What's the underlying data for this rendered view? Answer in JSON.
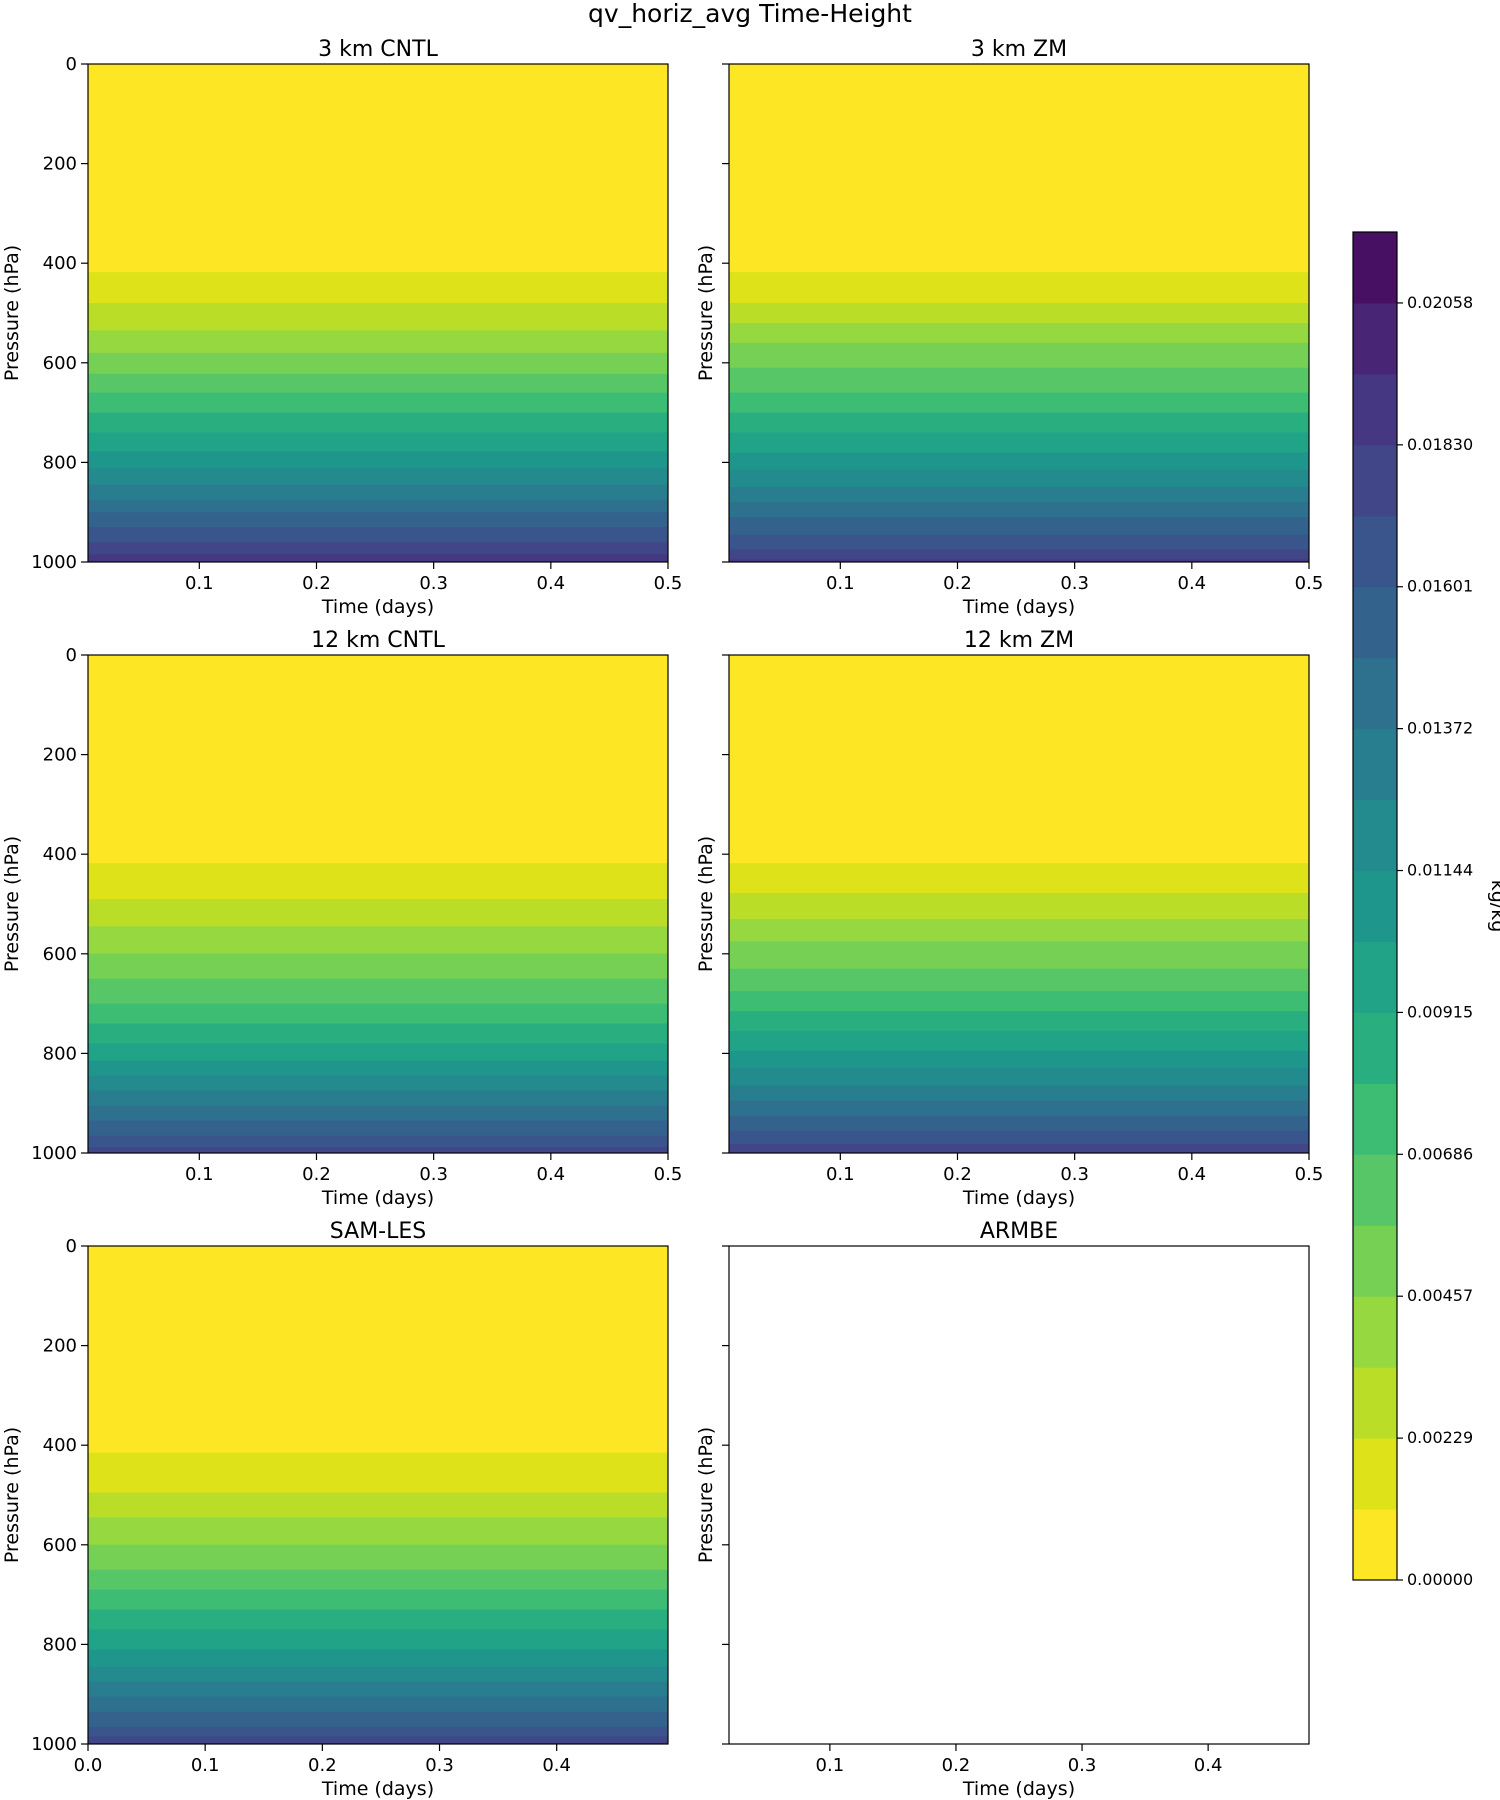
{
  "figure": {
    "title": "qv_horiz_avg Time-Height",
    "colorbar": {
      "label": "kg/kg",
      "tick_labels": [
        "0.00000",
        "0.00229",
        "0.00457",
        "0.00686",
        "0.00915",
        "0.01144",
        "0.01372",
        "0.01601",
        "0.01830",
        "0.02058"
      ],
      "levels": 19,
      "colors": [
        "#fde725",
        "#dde318",
        "#bade28",
        "#95d840",
        "#75d054",
        "#56c667",
        "#3dbc74",
        "#29af7f",
        "#20a386",
        "#1f968b",
        "#238a8d",
        "#287d8e",
        "#2d718e",
        "#33638d",
        "#39558c",
        "#404688",
        "#453781",
        "#482575",
        "#471063"
      ]
    }
  },
  "chart_data": [
    {
      "type": "contourf",
      "title": "3 km CNTL",
      "xlabel": "Time (days)",
      "ylabel": "Pressure (hPa)",
      "xlim": [
        0.005,
        0.5
      ],
      "ylim": [
        1000,
        0
      ],
      "xticks": [
        "0.1",
        "0.2",
        "0.3",
        "0.4",
        "0.5"
      ],
      "yticks": [
        "0",
        "200",
        "400",
        "600",
        "800",
        "1000"
      ],
      "boundaries": [
        {
          "x": [
            0.005,
            0.5
          ],
          "p": [
            418,
            418
          ]
        },
        {
          "x": [
            0.005,
            0.5
          ],
          "p": [
            480,
            480
          ]
        },
        {
          "x": [
            0.005,
            0.5
          ],
          "p": [
            535,
            535
          ]
        },
        {
          "x": [
            0.005,
            0.5
          ],
          "p": [
            580,
            580
          ]
        },
        {
          "x": [
            0.005,
            0.5
          ],
          "p": [
            622,
            622
          ]
        },
        {
          "x": [
            0.005,
            0.5
          ],
          "p": [
            660,
            660
          ]
        },
        {
          "x": [
            0.005,
            0.5
          ],
          "p": [
            700,
            700
          ]
        },
        {
          "x": [
            0.005,
            0.5
          ],
          "p": [
            740,
            740
          ]
        },
        {
          "x": [
            0.005,
            0.5
          ],
          "p": [
            778,
            778
          ]
        },
        {
          "x": [
            0.005,
            0.5
          ],
          "p": [
            812,
            812
          ]
        },
        {
          "x": [
            0.005,
            0.5
          ],
          "p": [
            845,
            845
          ]
        },
        {
          "x": [
            0.005,
            0.5
          ],
          "p": [
            875,
            875
          ]
        },
        {
          "x": [
            0.005,
            0.5
          ],
          "p": [
            900,
            900
          ]
        },
        {
          "x": [
            0.005,
            0.5
          ],
          "p": [
            930,
            930
          ]
        },
        {
          "x": [
            0.005,
            0.5
          ],
          "p": [
            960,
            960
          ]
        },
        {
          "x": [
            0.005,
            0.5
          ],
          "p": [
            985,
            985
          ]
        }
      ]
    },
    {
      "type": "contourf",
      "title": "3 km ZM",
      "xlabel": "Time (days)",
      "ylabel": "Pressure (hPa)",
      "xlim": [
        0.005,
        0.5
      ],
      "ylim": [
        1000,
        0
      ],
      "xticks": [
        "0.1",
        "0.2",
        "0.3",
        "0.4",
        "0.5"
      ],
      "yticks": [],
      "boundaries": [
        {
          "x": [
            0.005,
            0.5
          ],
          "p": [
            418,
            418
          ]
        },
        {
          "x": [
            0.005,
            0.5
          ],
          "p": [
            480,
            480
          ]
        },
        {
          "x": [
            0.005,
            0.5
          ],
          "p": [
            520,
            520
          ]
        },
        {
          "x": [
            0.005,
            0.5
          ],
          "p": [
            560,
            560
          ]
        },
        {
          "x": [
            0.005,
            0.5
          ],
          "p": [
            610,
            610
          ]
        },
        {
          "x": [
            0.005,
            0.5
          ],
          "p": [
            660,
            660
          ]
        },
        {
          "x": [
            0.005,
            0.5
          ],
          "p": [
            700,
            700
          ]
        },
        {
          "x": [
            0.005,
            0.5
          ],
          "p": [
            740,
            740
          ]
        },
        {
          "x": [
            0.005,
            0.5
          ],
          "p": [
            780,
            780
          ]
        },
        {
          "x": [
            0.005,
            0.5
          ],
          "p": [
            815,
            815
          ]
        },
        {
          "x": [
            0.005,
            0.5
          ],
          "p": [
            850,
            850
          ]
        },
        {
          "x": [
            0.005,
            0.5
          ],
          "p": [
            880,
            880
          ]
        },
        {
          "x": [
            0.005,
            0.5
          ],
          "p": [
            910,
            910
          ]
        },
        {
          "x": [
            0.005,
            0.5
          ],
          "p": [
            945,
            945
          ]
        },
        {
          "x": [
            0.005,
            0.5
          ],
          "p": [
            975,
            975
          ]
        },
        {
          "x": [
            0.005,
            0.5
          ],
          "p": [
            995,
            995
          ]
        }
      ]
    },
    {
      "type": "contourf",
      "title": "12 km CNTL",
      "xlabel": "Time (days)",
      "ylabel": "Pressure (hPa)",
      "xlim": [
        0.005,
        0.5
      ],
      "ylim": [
        1000,
        0
      ],
      "xticks": [
        "0.1",
        "0.2",
        "0.3",
        "0.4",
        "0.5"
      ],
      "yticks": [
        "0",
        "200",
        "400",
        "600",
        "800",
        "1000"
      ],
      "boundaries": [
        {
          "x": [
            0.005,
            0.5
          ],
          "p": [
            418,
            418
          ]
        },
        {
          "x": [
            0.005,
            0.5
          ],
          "p": [
            490,
            490
          ]
        },
        {
          "x": [
            0.005,
            0.5
          ],
          "p": [
            545,
            545
          ]
        },
        {
          "x": [
            0.005,
            0.5
          ],
          "p": [
            600,
            600
          ]
        },
        {
          "x": [
            0.005,
            0.5
          ],
          "p": [
            650,
            650
          ]
        },
        {
          "x": [
            0.005,
            0.5
          ],
          "p": [
            700,
            700
          ]
        },
        {
          "x": [
            0.005,
            0.5
          ],
          "p": [
            740,
            740
          ]
        },
        {
          "x": [
            0.005,
            0.5
          ],
          "p": [
            780,
            780
          ]
        },
        {
          "x": [
            0.005,
            0.5
          ],
          "p": [
            815,
            815
          ]
        },
        {
          "x": [
            0.005,
            0.5
          ],
          "p": [
            845,
            845
          ]
        },
        {
          "x": [
            0.005,
            0.5
          ],
          "p": [
            875,
            875
          ]
        },
        {
          "x": [
            0.005,
            0.5
          ],
          "p": [
            905,
            905
          ]
        },
        {
          "x": [
            0.005,
            0.5
          ],
          "p": [
            935,
            935
          ]
        },
        {
          "x": [
            0.005,
            0.5
          ],
          "p": [
            965,
            965
          ]
        },
        {
          "x": [
            0.005,
            0.5
          ],
          "p": [
            988,
            988
          ]
        }
      ]
    },
    {
      "type": "contourf",
      "title": "12 km ZM",
      "xlabel": "Time (days)",
      "ylabel": "Pressure (hPa)",
      "xlim": [
        0.005,
        0.5
      ],
      "ylim": [
        1000,
        0
      ],
      "xticks": [
        "0.1",
        "0.2",
        "0.3",
        "0.4",
        "0.5"
      ],
      "yticks": [],
      "boundaries": [
        {
          "x": [
            0.005,
            0.5
          ],
          "p": [
            418,
            418
          ]
        },
        {
          "x": [
            0.005,
            0.5
          ],
          "p": [
            478,
            478
          ]
        },
        {
          "x": [
            0.005,
            0.5
          ],
          "p": [
            530,
            530
          ]
        },
        {
          "x": [
            0.005,
            0.5
          ],
          "p": [
            575,
            575
          ]
        },
        {
          "x": [
            0.005,
            0.5
          ],
          "p": [
            630,
            630
          ]
        },
        {
          "x": [
            0.005,
            0.5
          ],
          "p": [
            675,
            675
          ]
        },
        {
          "x": [
            0.005,
            0.5
          ],
          "p": [
            715,
            715
          ]
        },
        {
          "x": [
            0.005,
            0.5
          ],
          "p": [
            755,
            755
          ]
        },
        {
          "x": [
            0.005,
            0.5
          ],
          "p": [
            795,
            795
          ]
        },
        {
          "x": [
            0.005,
            0.5
          ],
          "p": [
            830,
            830
          ]
        },
        {
          "x": [
            0.005,
            0.5
          ],
          "p": [
            865,
            865
          ]
        },
        {
          "x": [
            0.005,
            0.5
          ],
          "p": [
            895,
            895
          ]
        },
        {
          "x": [
            0.005,
            0.5
          ],
          "p": [
            925,
            925
          ]
        },
        {
          "x": [
            0.005,
            0.5
          ],
          "p": [
            955,
            955
          ]
        },
        {
          "x": [
            0.005,
            0.5
          ],
          "p": [
            982,
            982
          ]
        }
      ]
    },
    {
      "type": "contourf",
      "title": "SAM-LES",
      "xlabel": "Time (days)",
      "ylabel": "Pressure (hPa)",
      "xlim": [
        0.0,
        0.495
      ],
      "ylim": [
        1000,
        0
      ],
      "xticks": [
        "0.0",
        "0.1",
        "0.2",
        "0.3",
        "0.4"
      ],
      "yticks": [
        "0",
        "200",
        "400",
        "600",
        "800",
        "1000"
      ],
      "boundaries": [
        {
          "x": [
            0.0,
            0.495
          ],
          "p": [
            415,
            415
          ]
        },
        {
          "x": [
            0.0,
            0.495
          ],
          "p": [
            495,
            495
          ]
        },
        {
          "x": [
            0.0,
            0.495
          ],
          "p": [
            545,
            545
          ]
        },
        {
          "x": [
            0.0,
            0.495
          ],
          "p": [
            600,
            600
          ]
        },
        {
          "x": [
            0.0,
            0.495
          ],
          "p": [
            650,
            650
          ]
        },
        {
          "x": [
            0.0,
            0.495
          ],
          "p": [
            690,
            690
          ]
        },
        {
          "x": [
            0.0,
            0.495
          ],
          "p": [
            730,
            730
          ]
        },
        {
          "x": [
            0.0,
            0.495
          ],
          "p": [
            770,
            770
          ]
        },
        {
          "x": [
            0.0,
            0.495
          ],
          "p": [
            810,
            810
          ]
        },
        {
          "x": [
            0.0,
            0.495
          ],
          "p": [
            845,
            845
          ]
        },
        {
          "x": [
            0.0,
            0.495
          ],
          "p": [
            875,
            875
          ]
        },
        {
          "x": [
            0.0,
            0.495
          ],
          "p": [
            905,
            905
          ]
        },
        {
          "x": [
            0.0,
            0.495
          ],
          "p": [
            935,
            935
          ]
        },
        {
          "x": [
            0.0,
            0.495
          ],
          "p": [
            965,
            965
          ]
        },
        {
          "x": [
            0.0,
            0.495
          ],
          "p": [
            985,
            985
          ]
        }
      ]
    },
    {
      "type": "empty",
      "title": "ARMBE",
      "xlabel": "Time (days)",
      "ylabel": "Pressure (hPa)",
      "xlim": [
        0.02,
        0.48
      ],
      "ylim": [
        1000,
        0
      ],
      "xticks": [
        "0.1",
        "0.2",
        "0.3",
        "0.4"
      ],
      "yticks": [],
      "boundaries": []
    }
  ]
}
